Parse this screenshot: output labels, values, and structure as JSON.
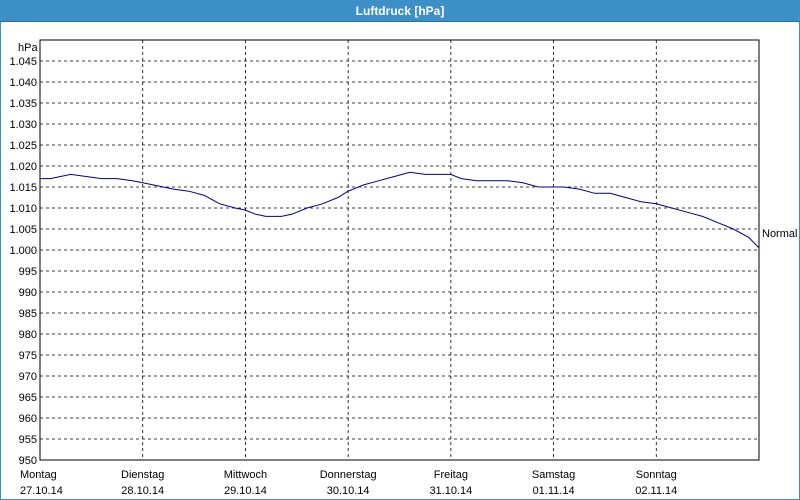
{
  "chart_data": {
    "type": "line",
    "title": "Luftdruck [hPa]",
    "ylabel": "hPa",
    "ylim": [
      950,
      1050
    ],
    "y_ticks": [
      "950",
      "955",
      "960",
      "965",
      "970",
      "975",
      "980",
      "985",
      "990",
      "995",
      "1.000",
      "1.005",
      "1.010",
      "1.015",
      "1.020",
      "1.025",
      "1.030",
      "1.035",
      "1.040",
      "1.045"
    ],
    "y_tick_values": [
      950,
      955,
      960,
      965,
      970,
      975,
      980,
      985,
      990,
      995,
      1000,
      1005,
      1010,
      1015,
      1020,
      1025,
      1030,
      1035,
      1040,
      1045
    ],
    "days": [
      {
        "name": "Montag",
        "date": "27.10.14"
      },
      {
        "name": "Dienstag",
        "date": "28.10.14"
      },
      {
        "name": "Mittwoch",
        "date": "29.10.14"
      },
      {
        "name": "Donnerstag",
        "date": "30.10.14"
      },
      {
        "name": "Freitag",
        "date": "31.10.14"
      },
      {
        "name": "Samstag",
        "date": "01.11.14"
      },
      {
        "name": "Sonntag",
        "date": "02.11.14"
      }
    ],
    "x_range_days": [
      0,
      7
    ],
    "grid": true,
    "reference_label": "Normal",
    "reference_value": 1004,
    "series_color": "#00008b",
    "series": [
      {
        "x_days": [
          0,
          0.1,
          0.2,
          0.3,
          0.45,
          0.6,
          0.75,
          0.9,
          1.0,
          1.1,
          1.2,
          1.3,
          1.45,
          1.6,
          1.75,
          1.9,
          2.0,
          2.1,
          2.2,
          2.35,
          2.45,
          2.6,
          2.75,
          2.9,
          3.0,
          3.15,
          3.3,
          3.45,
          3.6,
          3.75,
          3.9,
          4.0,
          4.1,
          4.25,
          4.4,
          4.55,
          4.7,
          4.85,
          5.0,
          5.1,
          5.25,
          5.4,
          5.55,
          5.7,
          5.85,
          6.0,
          6.15,
          6.3,
          6.45,
          6.6,
          6.75,
          6.9,
          7.0
        ],
        "values": [
          1017,
          1017,
          1017.5,
          1018,
          1017.5,
          1017,
          1017,
          1016.5,
          1016,
          1015.5,
          1015,
          1014.5,
          1014,
          1013,
          1011,
          1010,
          1009.5,
          1008.5,
          1008,
          1008,
          1008.5,
          1010,
          1011,
          1012.5,
          1014,
          1015.5,
          1016.5,
          1017.5,
          1018.5,
          1018,
          1018,
          1018,
          1017,
          1016.5,
          1016.5,
          1016.5,
          1016,
          1015,
          1015,
          1015,
          1014.5,
          1013.5,
          1013.5,
          1012.5,
          1011.5,
          1011,
          1010,
          1009,
          1008,
          1006.5,
          1005,
          1003,
          1000.5
        ]
      }
    ]
  }
}
